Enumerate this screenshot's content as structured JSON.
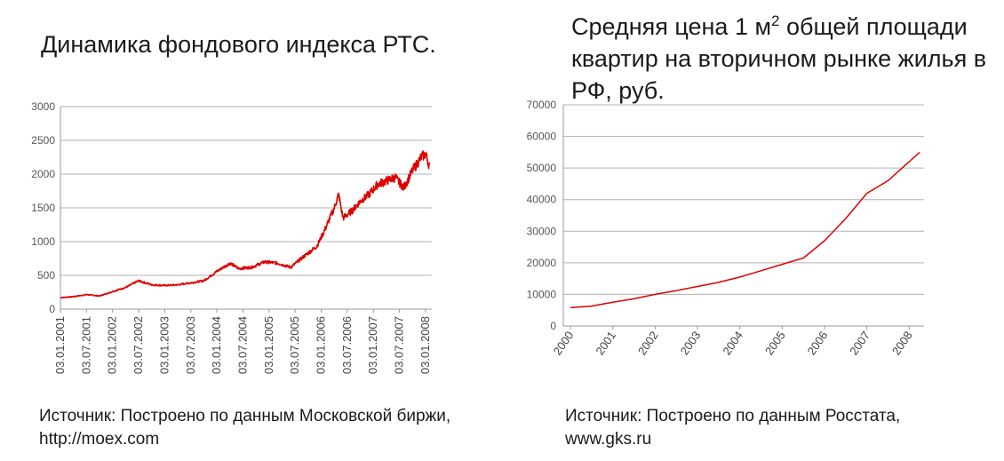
{
  "left": {
    "title": "Динамика фондового индекса РТС.",
    "source": "Источник: Построено по данным Московской биржи, http://moex.com"
  },
  "right": {
    "title_main": "Средняя цена 1 м",
    "title_sup": "2",
    "title_rest": " общей площади квартир на вторичном рынке жилья в РФ, руб.",
    "source": "Источник: Построено по данным Росстата, www.gks.ru"
  },
  "colors": {
    "series": "#dd0000",
    "grid": "#b0b0b0"
  },
  "chart_data": [
    {
      "type": "line",
      "title": "Динамика фондового индекса РТС.",
      "xlabel": "",
      "ylabel": "",
      "ylim": [
        0,
        3000
      ],
      "yticks": [
        0,
        500,
        1000,
        1500,
        2000,
        2500,
        3000
      ],
      "xticks": [
        "03.01.2001",
        "03.07.2001",
        "03.01.2002",
        "03.07.2002",
        "03.01.2003",
        "03.07.2003",
        "03.01.2004",
        "03.07.2004",
        "03.01.2005",
        "03.07.2005",
        "03.01.2006",
        "03.07.2006",
        "03.01.2007",
        "03.07.2007",
        "03.01.2008"
      ],
      "grid": true,
      "series": [
        {
          "x": [
            "2001-01",
            "2001-04",
            "2001-07",
            "2001-10",
            "2002-01",
            "2002-04",
            "2002-07",
            "2002-10",
            "2003-01",
            "2003-04",
            "2003-07",
            "2003-10",
            "2004-01",
            "2004-04",
            "2004-06",
            "2004-09",
            "2004-12",
            "2005-03",
            "2005-06",
            "2005-09",
            "2005-12",
            "2006-02",
            "2006-04",
            "2006-05",
            "2006-06",
            "2006-08",
            "2006-10",
            "2006-12",
            "2007-02",
            "2007-04",
            "2007-06",
            "2007-08",
            "2007-10",
            "2007-12",
            "2008-01",
            "2008-02"
          ],
          "values": [
            170,
            185,
            215,
            195,
            260,
            320,
            420,
            360,
            350,
            360,
            390,
            420,
            560,
            680,
            600,
            620,
            700,
            680,
            620,
            780,
            930,
            1200,
            1500,
            1700,
            1350,
            1450,
            1600,
            1700,
            1850,
            1900,
            1950,
            1800,
            2050,
            2250,
            2300,
            2100
          ]
        }
      ]
    },
    {
      "type": "line",
      "title": "Средняя цена 1 м2 общей площади квартир на вторичном рынке жилья в РФ, руб.",
      "xlabel": "",
      "ylabel": "",
      "ylim": [
        0,
        70000
      ],
      "yticks": [
        0,
        10000,
        20000,
        30000,
        40000,
        50000,
        60000,
        70000
      ],
      "xticks": [
        "2000",
        "2001",
        "2002",
        "2003",
        "2004",
        "2005",
        "2006",
        "2007",
        "2008"
      ],
      "grid": true,
      "series": [
        {
          "x": [
            2000,
            2000.5,
            2001,
            2001.5,
            2002,
            2002.5,
            2003,
            2003.5,
            2004,
            2004.5,
            2005,
            2005.5,
            2006,
            2006.5,
            2007,
            2007.5,
            2008,
            2008.25
          ],
          "values": [
            5800,
            6300,
            7500,
            8600,
            10000,
            11200,
            12500,
            13800,
            15500,
            17500,
            19500,
            21500,
            27000,
            34000,
            42000,
            46000,
            52000,
            55000
          ]
        }
      ]
    }
  ]
}
